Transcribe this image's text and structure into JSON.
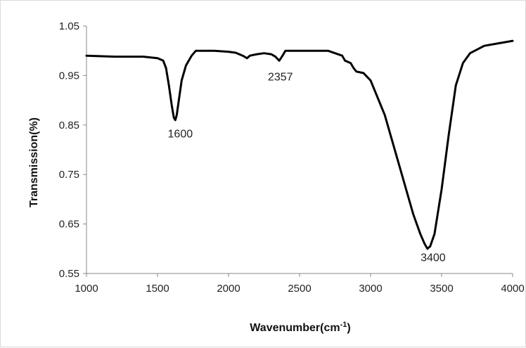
{
  "chart_data": {
    "type": "line",
    "title": "",
    "xlabel": "Wavenumber(cm",
    "xlabel_sup": "-1",
    "xlabel_close": ")",
    "ylabel": "Transmission(%)",
    "xlim": [
      1000,
      4000
    ],
    "ylim": [
      0.55,
      1.05
    ],
    "x_ticks": [
      "1000",
      "1500",
      "2000",
      "2500",
      "3000",
      "3500",
      "4000"
    ],
    "y_ticks": [
      "1.05",
      "0.95",
      "0.85",
      "0.75",
      "0.65",
      "0.55"
    ],
    "grid": false,
    "series": [
      {
        "color": "#000000",
        "x": [
          1000,
          1200,
          1400,
          1500,
          1540,
          1560,
          1580,
          1600,
          1615,
          1625,
          1635,
          1650,
          1670,
          1700,
          1740,
          1770,
          1800,
          1900,
          2000,
          2050,
          2100,
          2130,
          2150,
          2200,
          2250,
          2300,
          2330,
          2357,
          2380,
          2400,
          2500,
          2600,
          2700,
          2800,
          2820,
          2860,
          2880,
          2900,
          2950,
          3000,
          3100,
          3200,
          3300,
          3350,
          3380,
          3400,
          3420,
          3450,
          3500,
          3550,
          3600,
          3650,
          3700,
          3800,
          3900,
          4000
        ],
        "y": [
          0.99,
          0.988,
          0.988,
          0.985,
          0.98,
          0.965,
          0.93,
          0.89,
          0.865,
          0.86,
          0.87,
          0.9,
          0.94,
          0.97,
          0.99,
          1.0,
          1.0,
          1.0,
          0.998,
          0.996,
          0.99,
          0.985,
          0.99,
          0.993,
          0.995,
          0.993,
          0.988,
          0.98,
          0.99,
          1.0,
          1.0,
          1.0,
          1.0,
          0.99,
          0.98,
          0.975,
          0.965,
          0.958,
          0.955,
          0.94,
          0.87,
          0.77,
          0.67,
          0.63,
          0.61,
          0.6,
          0.605,
          0.63,
          0.72,
          0.83,
          0.93,
          0.975,
          0.995,
          1.01,
          1.015,
          1.02
        ]
      }
    ],
    "annotations": [
      {
        "text": "1600",
        "x": 1660,
        "y": 0.825
      },
      {
        "text": "2357",
        "x": 2365,
        "y": 0.94
      },
      {
        "text": "3400",
        "x": 3440,
        "y": 0.575
      }
    ]
  }
}
